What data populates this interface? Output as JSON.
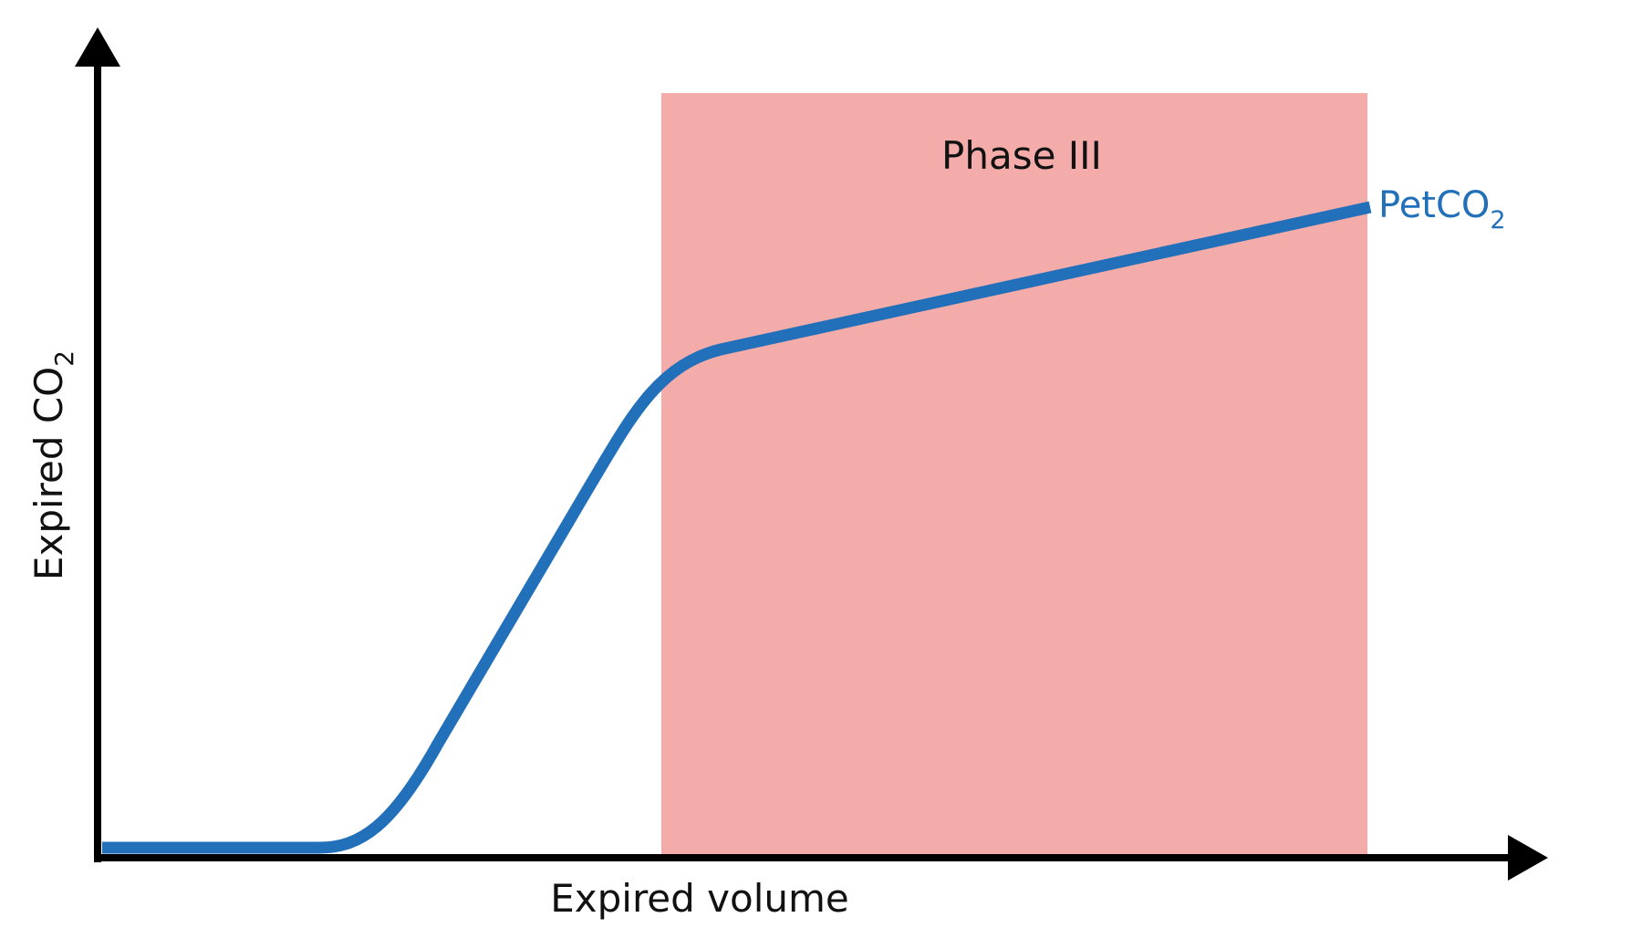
{
  "diagram": {
    "x_axis_label": "Expired volume",
    "y_axis_label": "Expired CO",
    "y_axis_label_subscript": "2",
    "phase_label": "Phase III",
    "curve_label": "PetCO",
    "curve_label_subscript": "2",
    "colors": {
      "axis": "#000000",
      "curve": "#2270b9",
      "phase_region": "#f3aca9",
      "text": "#111111"
    }
  }
}
